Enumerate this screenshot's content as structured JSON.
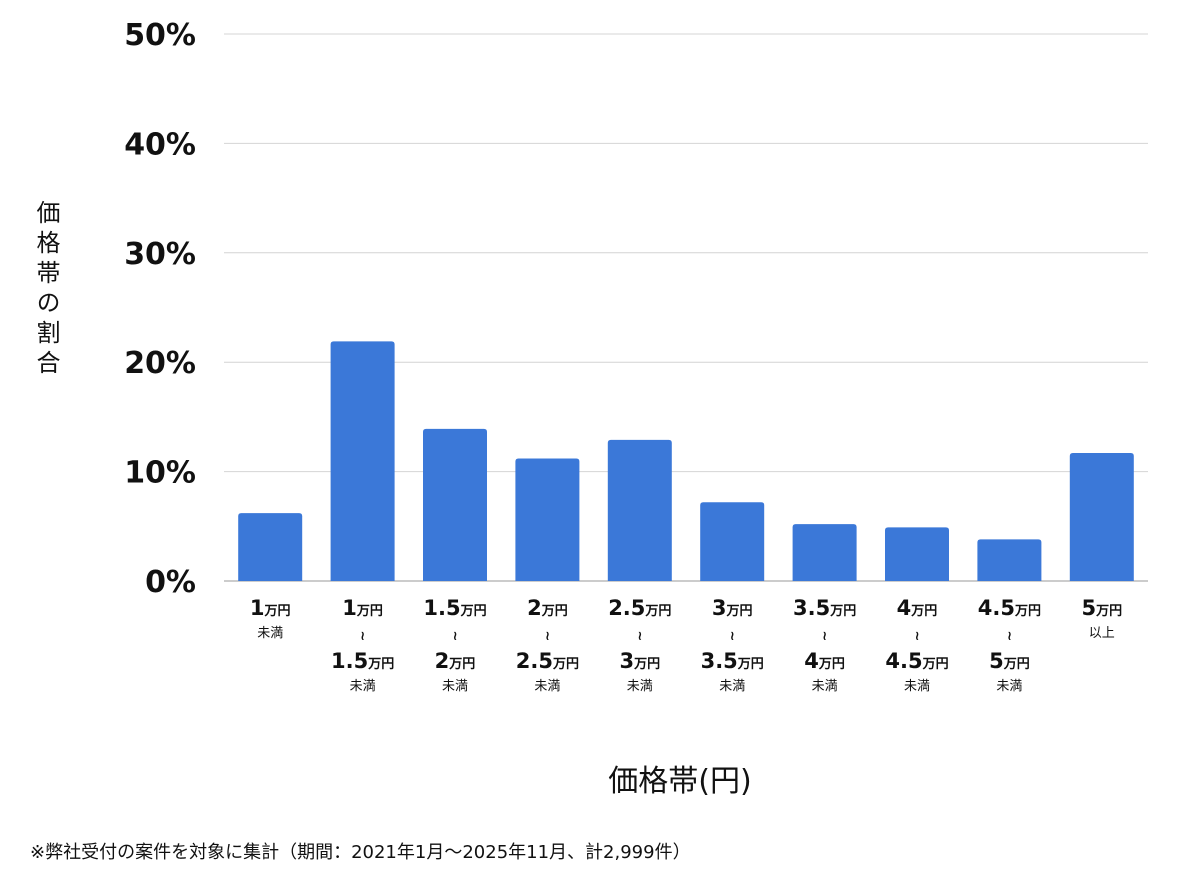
{
  "chart_data": {
    "type": "bar",
    "title": "",
    "xlabel": "価格帯(円)",
    "ylabel": "価格帯の割合",
    "ylim": [
      0,
      50
    ],
    "yticks": [
      "0%",
      "10%",
      "20%",
      "30%",
      "40%",
      "50%"
    ],
    "ytick_values": [
      0,
      10,
      20,
      30,
      40,
      50
    ],
    "grid": true,
    "bar_color": "#3b78d8",
    "categories": [
      {
        "from": "1",
        "from_unit": "万円",
        "to": "",
        "to_unit": "",
        "note": "未満"
      },
      {
        "from": "1",
        "from_unit": "万円",
        "to": "1.5",
        "to_unit": "万円",
        "note": "未満"
      },
      {
        "from": "1.5",
        "from_unit": "万円",
        "to": "2",
        "to_unit": "万円",
        "note": "未満"
      },
      {
        "from": "2",
        "from_unit": "万円",
        "to": "2.5",
        "to_unit": "万円",
        "note": "未満"
      },
      {
        "from": "2.5",
        "from_unit": "万円",
        "to": "3",
        "to_unit": "万円",
        "note": "未満"
      },
      {
        "from": "3",
        "from_unit": "万円",
        "to": "3.5",
        "to_unit": "万円",
        "note": "未満"
      },
      {
        "from": "3.5",
        "from_unit": "万円",
        "to": "4",
        "to_unit": "万円",
        "note": "未満"
      },
      {
        "from": "4",
        "from_unit": "万円",
        "to": "4.5",
        "to_unit": "万円",
        "note": "未満"
      },
      {
        "from": "4.5",
        "from_unit": "万円",
        "to": "5",
        "to_unit": "万円",
        "note": "未満"
      },
      {
        "from": "5",
        "from_unit": "万円",
        "to": "",
        "to_unit": "",
        "note": "以上"
      }
    ],
    "range_symbol": "≀",
    "values": [
      6.2,
      21.9,
      13.9,
      11.2,
      12.9,
      7.2,
      5.2,
      4.9,
      3.8,
      11.7
    ]
  },
  "footnote": "※弊社受付の案件を対象に集計（期間：2021年1月〜2025年11月、計2,999件）"
}
